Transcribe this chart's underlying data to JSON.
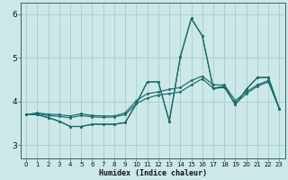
{
  "xlabel": "Humidex (Indice chaleur)",
  "background_color": "#cde8e8",
  "grid_color": "#aacccc",
  "line_color": "#1a6b6b",
  "xlim": [
    -0.5,
    23.5
  ],
  "ylim": [
    2.7,
    6.25
  ],
  "yticks": [
    3,
    4,
    5,
    6
  ],
  "xticks": [
    0,
    1,
    2,
    3,
    4,
    5,
    6,
    7,
    8,
    9,
    10,
    11,
    12,
    13,
    14,
    15,
    16,
    17,
    18,
    19,
    20,
    21,
    22,
    23
  ],
  "series": [
    [
      3.7,
      3.7,
      3.63,
      3.55,
      3.43,
      3.43,
      3.48,
      3.48,
      3.48,
      3.52,
      3.95,
      4.45,
      4.45,
      3.55,
      5.02,
      5.9,
      5.5,
      4.3,
      4.35,
      3.93,
      4.28,
      4.55,
      4.55,
      3.83
    ],
    [
      3.7,
      3.7,
      3.63,
      3.55,
      3.43,
      3.43,
      3.48,
      3.48,
      3.48,
      3.52,
      3.95,
      4.45,
      4.45,
      3.55,
      5.02,
      5.9,
      5.5,
      4.3,
      4.35,
      3.93,
      4.28,
      4.55,
      4.55,
      3.83
    ],
    [
      3.7,
      3.72,
      3.68,
      3.66,
      3.63,
      3.68,
      3.65,
      3.64,
      3.65,
      3.7,
      3.95,
      4.08,
      4.15,
      4.18,
      4.22,
      4.38,
      4.52,
      4.3,
      4.32,
      3.95,
      4.18,
      4.35,
      4.45,
      3.83
    ],
    [
      3.7,
      3.74,
      3.71,
      3.7,
      3.67,
      3.72,
      3.68,
      3.67,
      3.67,
      3.74,
      4.02,
      4.18,
      4.22,
      4.28,
      4.32,
      4.48,
      4.58,
      4.38,
      4.38,
      4.02,
      4.22,
      4.38,
      4.48,
      3.83
    ]
  ]
}
